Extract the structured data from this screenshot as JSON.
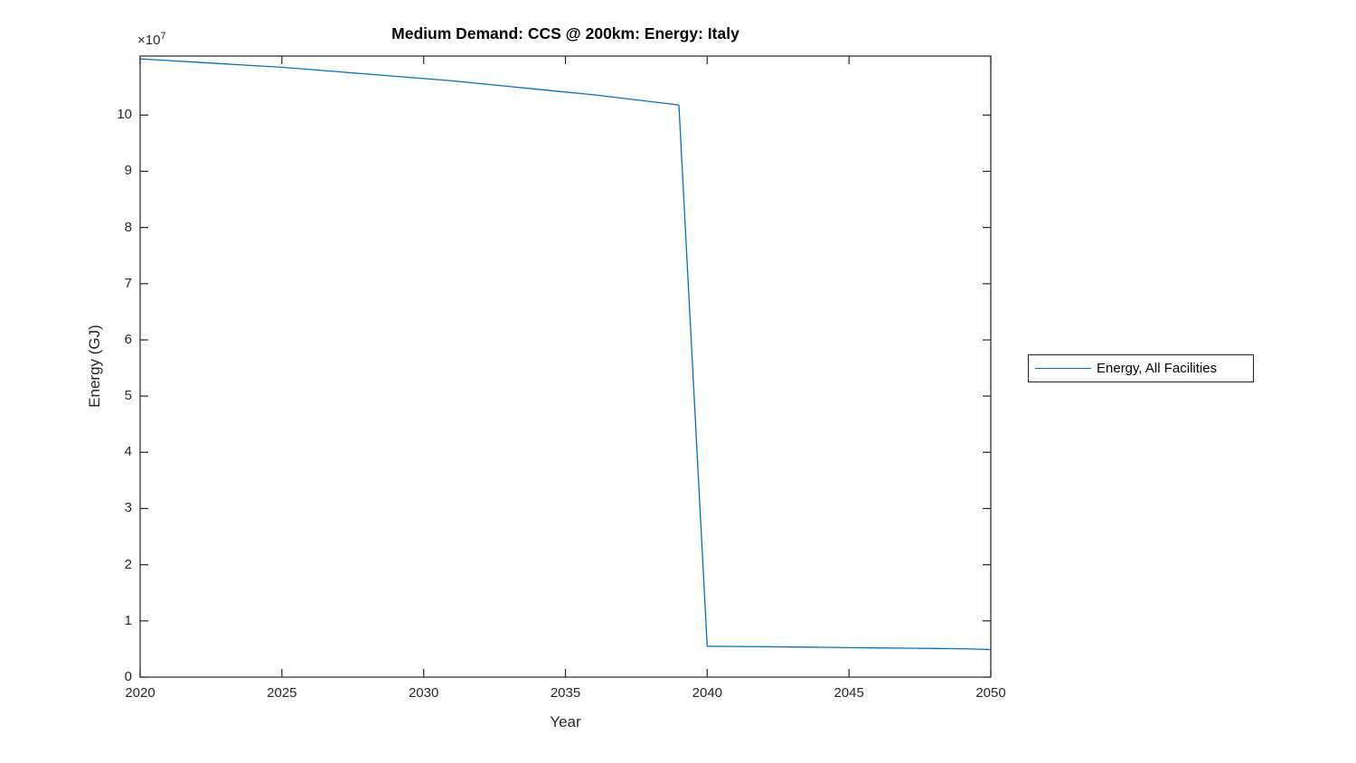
{
  "title": "Medium Demand: CCS @ 200km: Energy: Italy",
  "axes": {
    "xlabel": "Year",
    "ylabel": "Energy (GJ)",
    "exponent_base": "×10",
    "exponent_power": "7",
    "axis_color": "#262626"
  },
  "legend": {
    "entries": [
      {
        "label": "Energy, All Facilities",
        "color": "#0072BD"
      }
    ]
  },
  "chart_data": {
    "type": "line",
    "title": "Medium Demand: CCS @ 200km: Energy: Italy",
    "xlabel": "Year",
    "ylabel": "Energy (GJ)",
    "y_unit_multiplier": 10000000,
    "y_units_note": "values are in units of 1e7 GJ as displayed on the axis",
    "x": [
      2020,
      2021,
      2022,
      2023,
      2024,
      2025,
      2026,
      2027,
      2028,
      2029,
      2030,
      2031,
      2032,
      2033,
      2034,
      2035,
      2036,
      2037,
      2038,
      2039,
      2040,
      2041,
      2042,
      2043,
      2044,
      2045,
      2046,
      2047,
      2048,
      2049,
      2050
    ],
    "series": [
      {
        "name": "Energy, All Facilities",
        "color": "#0072BD",
        "values": [
          11.0,
          10.97,
          10.94,
          10.91,
          10.88,
          10.85,
          10.81,
          10.77,
          10.73,
          10.69,
          10.65,
          10.61,
          10.56,
          10.51,
          10.46,
          10.41,
          10.36,
          10.3,
          10.24,
          10.18,
          0.55,
          0.545,
          0.54,
          0.535,
          0.53,
          0.525,
          0.52,
          0.515,
          0.51,
          0.505,
          0.49
        ],
        "note": "sharp drop between 2039 and 2040"
      }
    ],
    "xlim": [
      2020,
      2050
    ],
    "ylim": [
      0,
      11.05
    ],
    "xticks": [
      2020,
      2025,
      2030,
      2035,
      2040,
      2045,
      2050
    ],
    "yticks": [
      0,
      1,
      2,
      3,
      4,
      5,
      6,
      7,
      8,
      9,
      10
    ],
    "grid": false,
    "legend_position": "right-outside"
  }
}
